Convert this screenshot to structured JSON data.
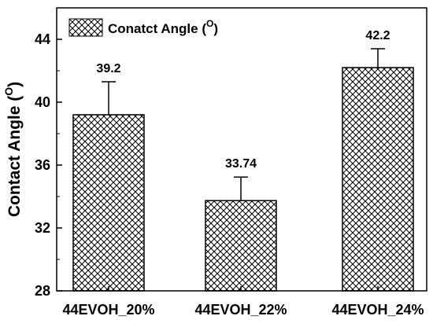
{
  "chart_data": {
    "type": "bar",
    "categories": [
      "44EVOH_20%",
      "44EVOH_22%",
      "44EVOH_24%"
    ],
    "series": [
      {
        "name": "Conatct Angle (O)",
        "values": [
          39.2,
          33.74,
          42.2
        ],
        "errors": [
          2.1,
          1.5,
          1.2
        ],
        "labels": [
          "39.2",
          "33.74",
          "42.2"
        ]
      }
    ],
    "legend": {
      "text": "Conatct Angle (",
      "superscript": "O",
      "suffix": ")",
      "position": "top-left"
    },
    "ylabel": {
      "text": "Contact Angle (",
      "superscript": "O",
      "suffix": ")"
    },
    "xlabel": "",
    "ylim": [
      28,
      46
    ],
    "yticks": [
      28,
      32,
      36,
      40,
      44
    ],
    "ytick_labels": [
      "28",
      "32",
      "36",
      "40",
      "44"
    ],
    "fill_pattern": "crosshatch",
    "colors": {
      "bar_fill": "#ffffff",
      "hatch": "#000000",
      "stroke": "#000000"
    }
  }
}
